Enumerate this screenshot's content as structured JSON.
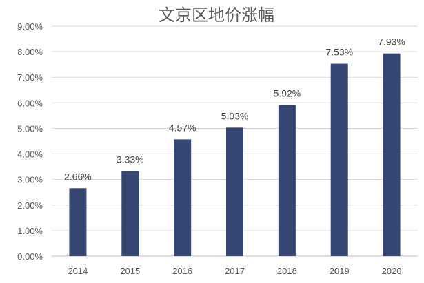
{
  "chart_data": {
    "type": "bar",
    "title": "文京区地价涨幅",
    "categories": [
      "2014",
      "2015",
      "2016",
      "2017",
      "2018",
      "2019",
      "2020"
    ],
    "values": [
      2.66,
      3.33,
      4.57,
      5.03,
      5.92,
      7.53,
      7.93
    ],
    "data_labels": [
      "2.66%",
      "3.33%",
      "4.57%",
      "5.03%",
      "5.92%",
      "7.53%",
      "7.93%"
    ],
    "y_ticks": [
      "0.00%",
      "1.00%",
      "2.00%",
      "3.00%",
      "4.00%",
      "5.00%",
      "6.00%",
      "7.00%",
      "8.00%",
      "9.00%"
    ],
    "ylim": [
      0,
      9
    ],
    "xlabel": "",
    "ylabel": "",
    "grid": true,
    "legend": "none",
    "colors": {
      "bar": "#354672",
      "grid": "#d9d9d9",
      "text": "#595959"
    }
  }
}
